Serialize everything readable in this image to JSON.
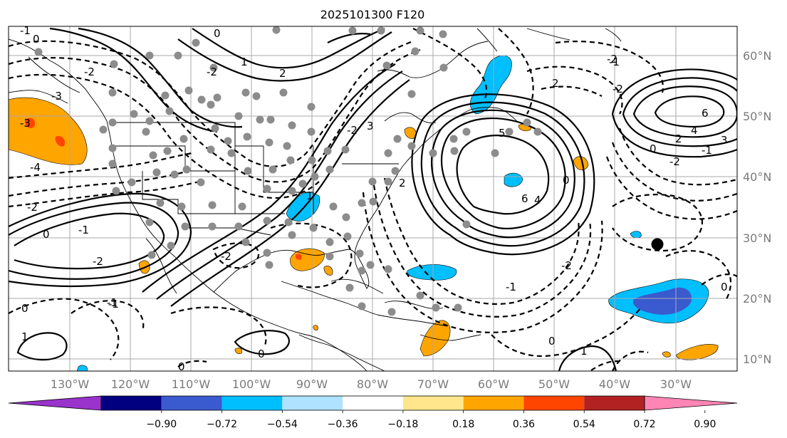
{
  "title": "2025101300 F120",
  "lat_labels": [
    "60°N",
    "50°N",
    "40°N",
    "30°N",
    "20°N",
    "10°N"
  ],
  "lon_labels": [
    "130°W",
    "120°W",
    "110°W",
    "100°W",
    "90°W",
    "80°W",
    "70°W",
    "60°W",
    "50°W",
    "40°W",
    "30°W"
  ],
  "colorbar": {
    "tick_labels": [
      "−0.90",
      "−0.72",
      "−0.54",
      "−0.36",
      "−0.18",
      "0.18",
      "0.36",
      "0.54",
      "0.72",
      "0.90"
    ],
    "colors": [
      "#9933cc",
      "#000080",
      "#3a5ad0",
      "#00bfff",
      "#aee2ff",
      "#ffffff",
      "#ffe68c",
      "#ffa500",
      "#ff4500",
      "#b22222",
      "#ff85b5"
    ]
  },
  "contour_labels": [
    "0",
    "-1",
    "-2",
    "-3",
    "0",
    "2",
    "1",
    "-2",
    "-3",
    "-4",
    "-2",
    "0",
    "-1",
    "-2",
    "-1",
    "0",
    "1",
    "-2",
    "3",
    "-2",
    "1",
    "2",
    "5",
    "6",
    "4",
    "-1",
    "0",
    "2",
    "6",
    "4",
    "3",
    "2",
    "0",
    "-2",
    "-1",
    "0",
    "-1",
    "-2",
    "-2",
    "0",
    "1",
    "-1",
    "0",
    "0",
    "-2"
  ],
  "markers": {
    "dot_color": "#8c8c8c",
    "center_marker_color": "#000000"
  }
}
